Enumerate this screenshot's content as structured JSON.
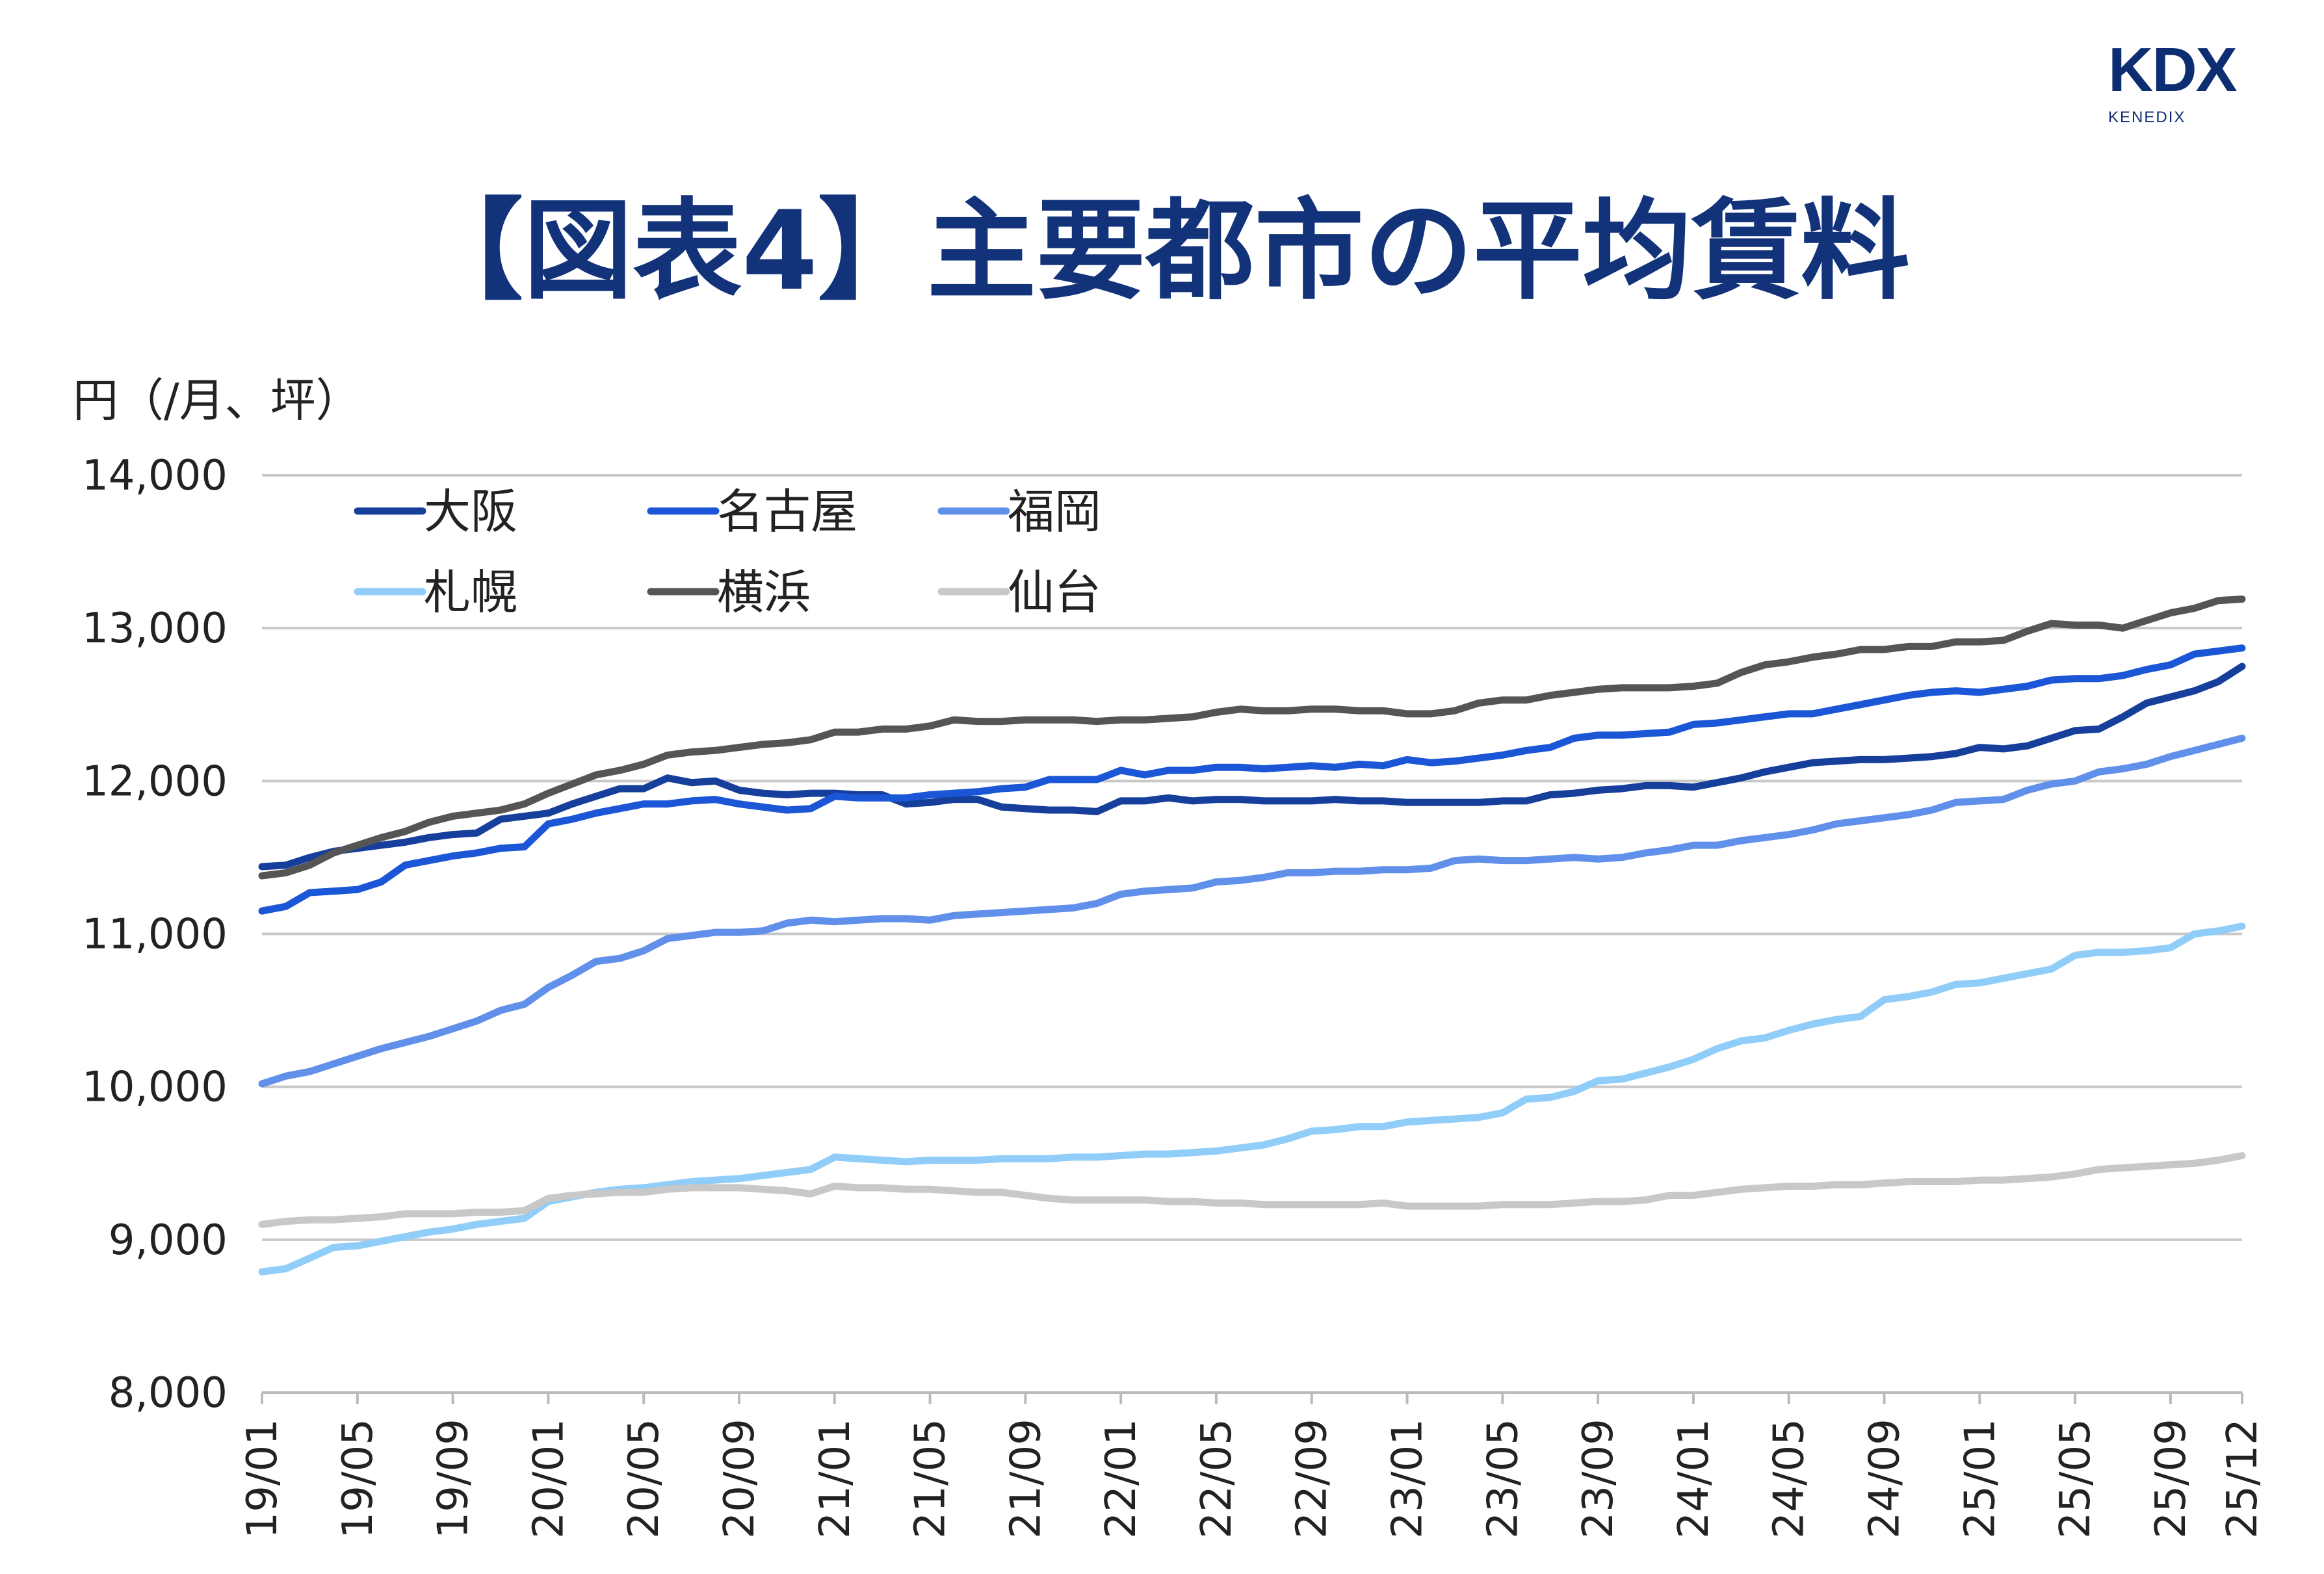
{
  "logo": {
    "main": "KDX",
    "sub": "KENEDIX"
  },
  "chart_data": {
    "type": "line",
    "title": "【図表4】主要都市の平均賃料",
    "ylabel": "円（/月、坪）",
    "xlabel": "",
    "ylim": [
      8000,
      14000
    ],
    "yticks": [
      8000,
      9000,
      10000,
      11000,
      12000,
      13000,
      14000
    ],
    "ytick_labels": [
      "8,000",
      "9,000",
      "10,000",
      "11,000",
      "12,000",
      "13,000",
      "14,000"
    ],
    "grid": true,
    "legend": "top-left",
    "x_tick_labels": [
      "19/01",
      "19/05",
      "19/09",
      "20/01",
      "20/05",
      "20/09",
      "21/01",
      "21/05",
      "21/09",
      "22/01",
      "22/05",
      "22/09",
      "23/01",
      "23/05",
      "23/09",
      "24/01",
      "24/05",
      "24/09",
      "25/01",
      "25/05",
      "25/09",
      "25/12"
    ],
    "categories": [
      "19/01",
      "19/02",
      "19/03",
      "19/04",
      "19/05",
      "19/06",
      "19/07",
      "19/08",
      "19/09",
      "19/10",
      "19/11",
      "19/12",
      "20/01",
      "20/02",
      "20/03",
      "20/04",
      "20/05",
      "20/06",
      "20/07",
      "20/08",
      "20/09",
      "20/10",
      "20/11",
      "20/12",
      "21/01",
      "21/02",
      "21/03",
      "21/04",
      "21/05",
      "21/06",
      "21/07",
      "21/08",
      "21/09",
      "21/10",
      "21/11",
      "21/12",
      "22/01",
      "22/02",
      "22/03",
      "22/04",
      "22/05",
      "22/06",
      "22/07",
      "22/08",
      "22/09",
      "22/10",
      "22/11",
      "22/12",
      "23/01",
      "23/02",
      "23/03",
      "23/04",
      "23/05",
      "23/06",
      "23/07",
      "23/08",
      "23/09",
      "23/10",
      "23/11",
      "23/12",
      "24/01",
      "24/02",
      "24/03",
      "24/04",
      "24/05",
      "24/06",
      "24/07",
      "24/08",
      "24/09",
      "24/10",
      "24/11",
      "24/12",
      "25/01",
      "25/02",
      "25/03",
      "25/04",
      "25/05",
      "25/06",
      "25/07",
      "25/08",
      "25/09",
      "25/10",
      "25/11",
      "25/12"
    ],
    "series": [
      {
        "name": "大阪",
        "color": "#163f9c",
        "values": [
          11440,
          11450,
          11500,
          11540,
          11560,
          11580,
          11600,
          11630,
          11650,
          11660,
          11750,
          11770,
          11790,
          11850,
          11900,
          11950,
          11950,
          12020,
          11990,
          12000,
          11940,
          11920,
          11910,
          11920,
          11920,
          11910,
          11910,
          11850,
          11860,
          11880,
          11880,
          11830,
          11820,
          11810,
          11810,
          11800,
          11870,
          11870,
          11890,
          11870,
          11880,
          11880,
          11870,
          11870,
          11870,
          11880,
          11870,
          11870,
          11860,
          11860,
          11860,
          11860,
          11870,
          11870,
          11910,
          11920,
          11940,
          11950,
          11970,
          11970,
          11960,
          11990,
          12020,
          12060,
          12090,
          12120,
          12130,
          12140,
          12140,
          12150,
          12160,
          12180,
          12220,
          12210,
          12230,
          12280,
          12330,
          12340,
          12420,
          12510,
          12550,
          12590,
          12650,
          12750
        ]
      },
      {
        "name": "名古屋",
        "color": "#1a56d6",
        "values": [
          11150,
          11180,
          11270,
          11280,
          11290,
          11340,
          11450,
          11480,
          11510,
          11530,
          11560,
          11570,
          11720,
          11750,
          11790,
          11820,
          11850,
          11850,
          11870,
          11880,
          11850,
          11830,
          11810,
          11820,
          11900,
          11890,
          11890,
          11890,
          11910,
          11920,
          11930,
          11950,
          11960,
          12010,
          12010,
          12010,
          12070,
          12040,
          12070,
          12070,
          12090,
          12090,
          12080,
          12090,
          12100,
          12090,
          12110,
          12100,
          12140,
          12120,
          12130,
          12150,
          12170,
          12200,
          12220,
          12280,
          12300,
          12300,
          12310,
          12320,
          12370,
          12380,
          12400,
          12420,
          12440,
          12440,
          12470,
          12500,
          12530,
          12560,
          12580,
          12590,
          12580,
          12600,
          12620,
          12660,
          12670,
          12670,
          12690,
          12730,
          12760,
          12830,
          12850,
          12870
        ]
      },
      {
        "name": "福岡",
        "color": "#6090ea",
        "values": [
          10020,
          10070,
          10100,
          10150,
          10200,
          10250,
          10290,
          10330,
          10380,
          10430,
          10500,
          10540,
          10650,
          10730,
          10820,
          10840,
          10890,
          10970,
          10990,
          11010,
          11010,
          11020,
          11070,
          11090,
          11080,
          11090,
          11100,
          11100,
          11090,
          11120,
          11130,
          11140,
          11150,
          11160,
          11170,
          11200,
          11260,
          11280,
          11290,
          11300,
          11340,
          11350,
          11370,
          11400,
          11400,
          11410,
          11410,
          11420,
          11420,
          11430,
          11480,
          11490,
          11480,
          11480,
          11490,
          11500,
          11490,
          11500,
          11530,
          11550,
          11580,
          11580,
          11610,
          11630,
          11650,
          11680,
          11720,
          11740,
          11760,
          11780,
          11810,
          11860,
          11870,
          11880,
          11940,
          11980,
          12000,
          12060,
          12080,
          12110,
          12160,
          12200,
          12240,
          12280
        ]
      },
      {
        "name": "札幌",
        "color": "#90cdf8",
        "values": [
          8790,
          8810,
          8880,
          8950,
          8960,
          8990,
          9020,
          9050,
          9070,
          9100,
          9120,
          9140,
          9250,
          9280,
          9310,
          9330,
          9340,
          9360,
          9380,
          9390,
          9400,
          9420,
          9440,
          9460,
          9540,
          9530,
          9520,
          9510,
          9520,
          9520,
          9520,
          9530,
          9530,
          9530,
          9540,
          9540,
          9550,
          9560,
          9560,
          9570,
          9580,
          9600,
          9620,
          9660,
          9710,
          9720,
          9740,
          9740,
          9770,
          9780,
          9790,
          9800,
          9830,
          9920,
          9930,
          9970,
          10040,
          10050,
          10090,
          10130,
          10180,
          10250,
          10300,
          10320,
          10370,
          10410,
          10440,
          10460,
          10570,
          10590,
          10620,
          10670,
          10680,
          10710,
          10740,
          10770,
          10860,
          10880,
          10880,
          10890,
          10910,
          11000,
          11020,
          11050
        ]
      },
      {
        "name": "横浜",
        "color": "#555555",
        "values": [
          11380,
          11400,
          11450,
          11530,
          11580,
          11630,
          11670,
          11730,
          11770,
          11790,
          11810,
          11850,
          11920,
          11980,
          12040,
          12070,
          12110,
          12170,
          12190,
          12200,
          12220,
          12240,
          12250,
          12270,
          12320,
          12320,
          12340,
          12340,
          12360,
          12400,
          12390,
          12390,
          12400,
          12400,
          12400,
          12390,
          12400,
          12400,
          12410,
          12420,
          12450,
          12470,
          12460,
          12460,
          12470,
          12470,
          12460,
          12460,
          12440,
          12440,
          12460,
          12510,
          12530,
          12530,
          12560,
          12580,
          12600,
          12610,
          12610,
          12610,
          12620,
          12640,
          12710,
          12760,
          12780,
          12810,
          12830,
          12860,
          12860,
          12880,
          12880,
          12910,
          12910,
          12920,
          12980,
          13030,
          13020,
          13020,
          13000,
          13050,
          13100,
          13130,
          13180,
          13190
        ]
      },
      {
        "name": "仙台",
        "color": "#c8c8c8",
        "values": [
          9100,
          9120,
          9130,
          9130,
          9140,
          9150,
          9170,
          9170,
          9170,
          9180,
          9180,
          9190,
          9270,
          9290,
          9300,
          9310,
          9310,
          9330,
          9340,
          9340,
          9340,
          9330,
          9320,
          9300,
          9350,
          9340,
          9340,
          9330,
          9330,
          9320,
          9310,
          9310,
          9290,
          9270,
          9260,
          9260,
          9260,
          9260,
          9250,
          9250,
          9240,
          9240,
          9230,
          9230,
          9230,
          9230,
          9230,
          9240,
          9220,
          9220,
          9220,
          9220,
          9230,
          9230,
          9230,
          9240,
          9250,
          9250,
          9260,
          9290,
          9290,
          9310,
          9330,
          9340,
          9350,
          9350,
          9360,
          9360,
          9370,
          9380,
          9380,
          9380,
          9390,
          9390,
          9400,
          9410,
          9430,
          9460,
          9470,
          9480,
          9490,
          9500,
          9520,
          9550
        ]
      }
    ]
  },
  "colors": {
    "title": "#12337a",
    "logo": "#0d2d72",
    "grid": "#c8c8c8"
  }
}
